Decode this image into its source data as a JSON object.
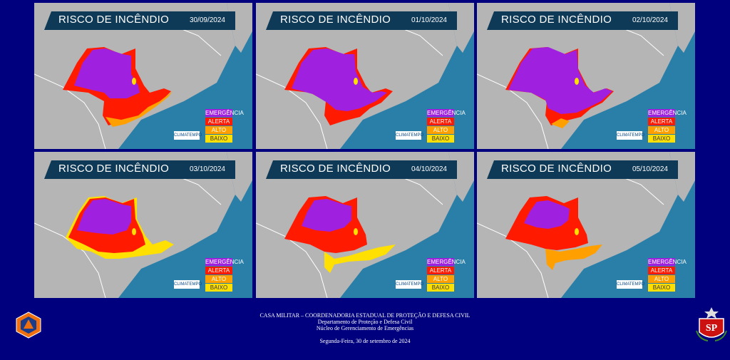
{
  "panels": [
    {
      "title": "RISCO DE INCÊNDIO",
      "date": "30/09/2024"
    },
    {
      "title": "RISCO DE INCÊNDIO",
      "date": "01/10/2024"
    },
    {
      "title": "RISCO DE INCÊNDIO",
      "date": "02/10/2024"
    },
    {
      "title": "RISCO DE INCÊNDIO",
      "date": "03/10/2024"
    },
    {
      "title": "RISCO DE INCÊNDIO",
      "date": "04/10/2024"
    },
    {
      "title": "RISCO DE INCÊNDIO",
      "date": "05/10/2024"
    }
  ],
  "legend": {
    "emergencia": "EMERGÊNCIA",
    "alerta": "ALERTA",
    "alto": "ALTO",
    "baixo": "BAIXO"
  },
  "brand": "CLIMATEMPO",
  "colors": {
    "emergencia": "#a020e0",
    "alerta": "#ff1a00",
    "alto": "#ffa000",
    "baixo": "#ffe000",
    "background": "#00007f"
  },
  "footer": {
    "line1": "CASA MILITAR – COORDENADORIA ESTADUAL DE PROTEÇÃO E DEFESA CIVIL",
    "line2": "Departamento de Proteção e Defesa Civil",
    "line3": "Núcleo de Gerenciamento de Emergências",
    "date": "Segunda-Feira, 30 de setembro de 2024"
  },
  "emblems": {
    "left": "defesa-civil-emblem",
    "right": "sp-state-coat-of-arms",
    "right_text": "SP"
  }
}
